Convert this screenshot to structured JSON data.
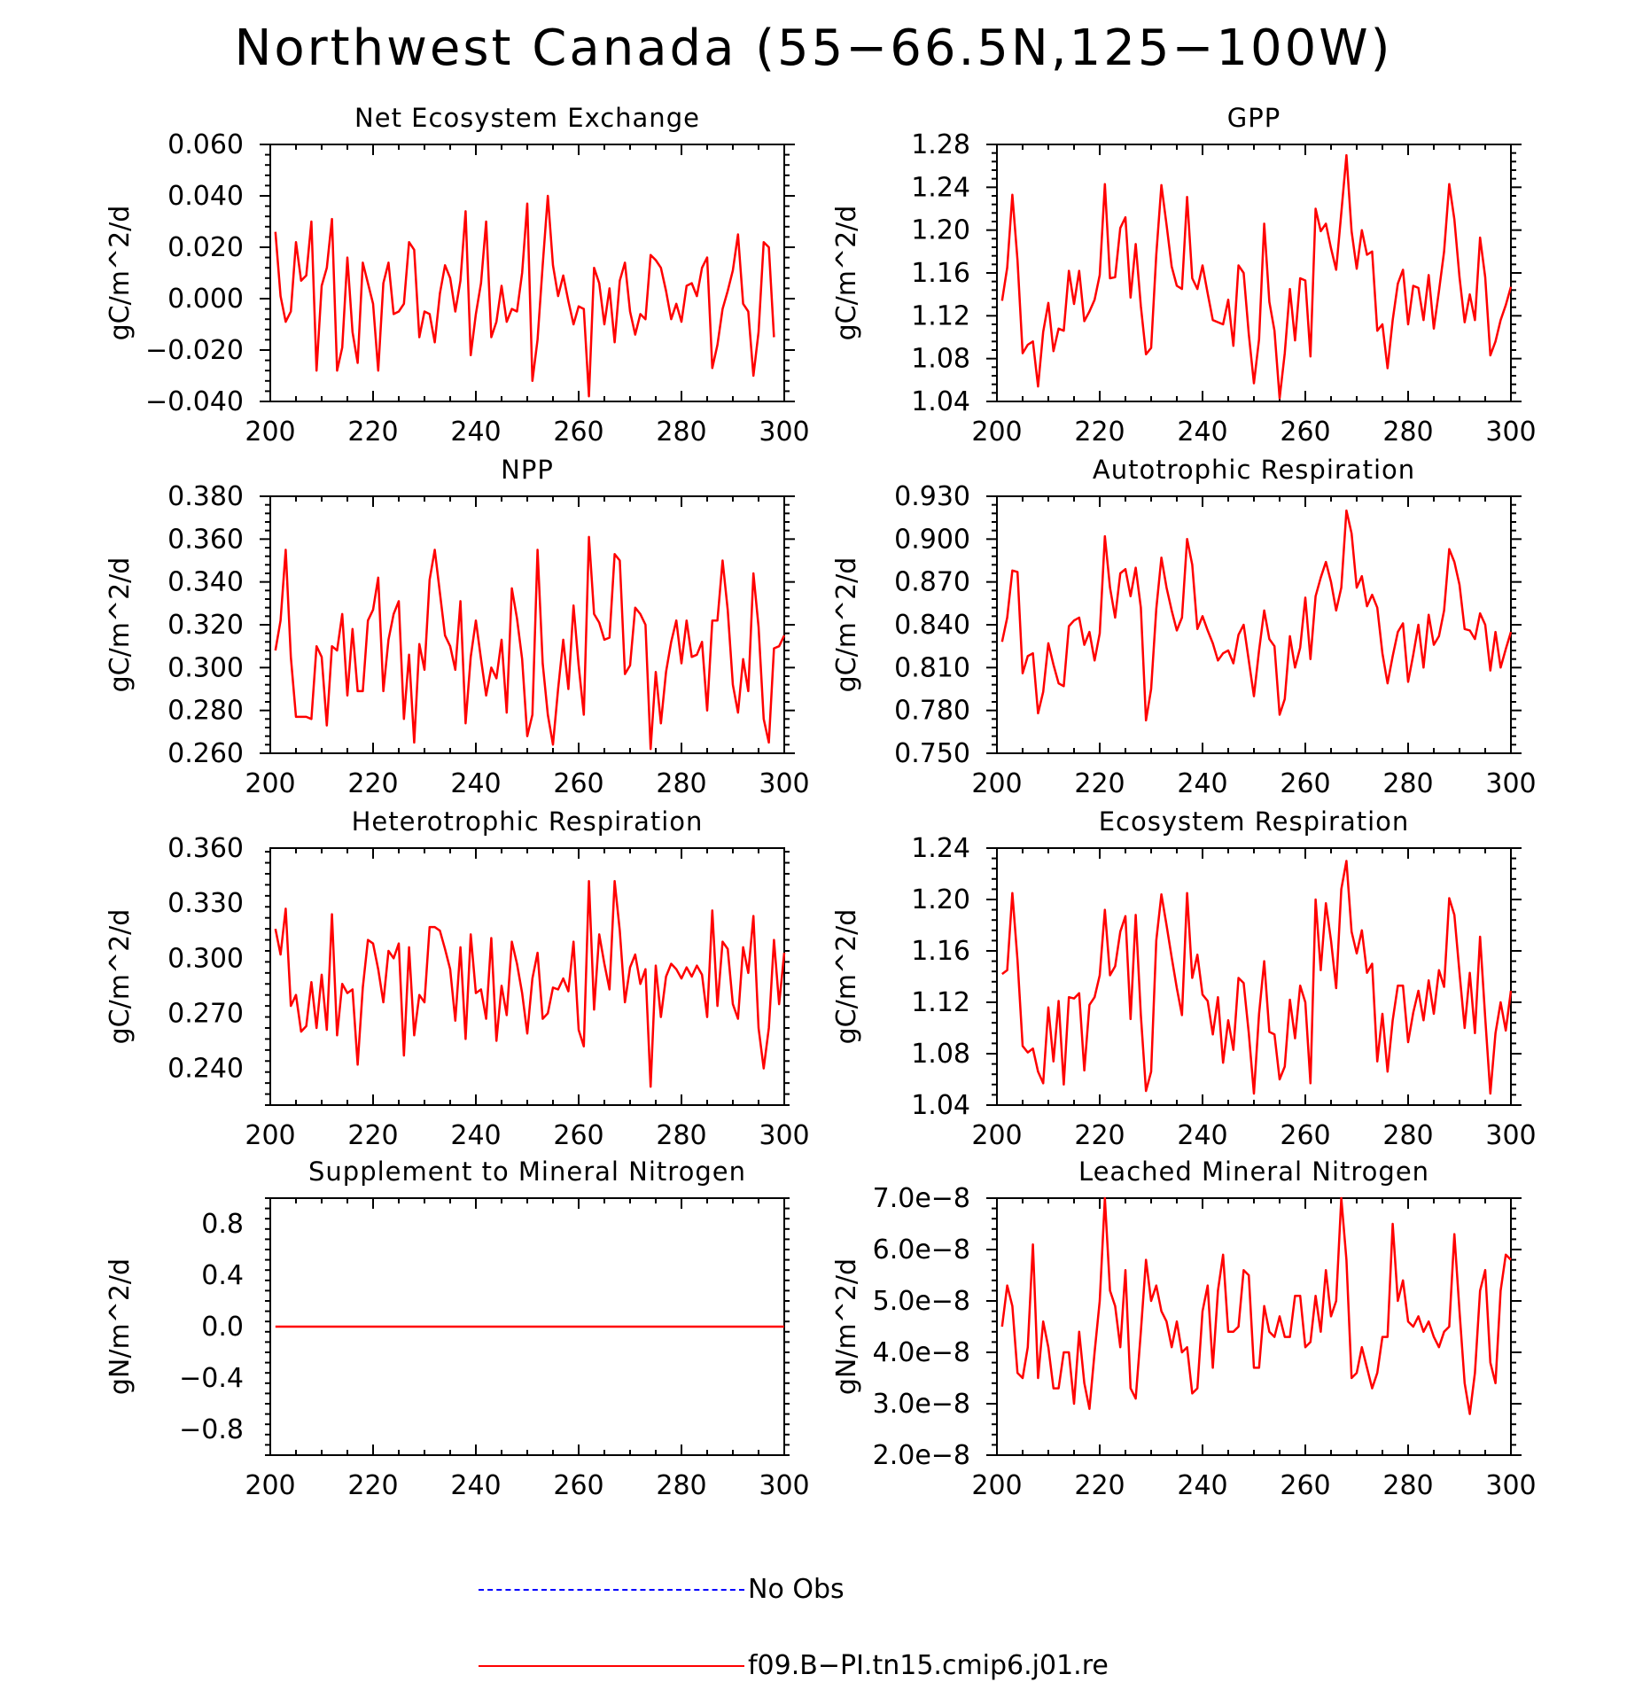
{
  "title": "Northwest Canada (55−66.5N,125−100W)",
  "colors": {
    "model": "#ff0000",
    "obs": "#0000ff",
    "axis": "#000000"
  },
  "legend": {
    "obs_label": "No Obs",
    "model_label": "f09.B−PI.tn15.cmip6.j01.re"
  },
  "chart_data": [
    {
      "type": "line",
      "title": "Net Ecosystem Exchange",
      "ylabel": "gC/m^2/d",
      "xlim": [
        200,
        300
      ],
      "ylim": [
        -0.04,
        0.06
      ],
      "xticks": [
        "200",
        "220",
        "240",
        "260",
        "280",
        "300"
      ],
      "yticks": [
        "−0.040",
        "−0.020",
        "0.000",
        "0.020",
        "0.040",
        "0.060"
      ],
      "series": [
        {
          "x_start": 201,
          "values": [
            0.026,
            0.001,
            -0.009,
            -0.005,
            0.022,
            0.007,
            0.009,
            0.03,
            -0.028,
            0.005,
            0.012,
            0.031,
            -0.028,
            -0.019,
            0.016,
            -0.013,
            -0.025,
            0.014,
            0.006,
            -0.002,
            -0.028,
            0.006,
            0.014,
            -0.006,
            -0.005,
            -0.002,
            0.022,
            0.019,
            -0.015,
            -0.005,
            -0.006,
            -0.017,
            0.002,
            0.013,
            0.008,
            -0.005,
            0.007,
            0.034,
            -0.022,
            -0.006,
            0.006,
            0.03,
            -0.015,
            -0.009,
            0.005,
            -0.009,
            -0.004,
            -0.005,
            0.01,
            0.037,
            -0.032,
            -0.016,
            0.013,
            0.04,
            0.013,
            0.001,
            0.009,
            -0.001,
            -0.01,
            -0.003,
            -0.004,
            -0.038,
            0.012,
            0.006,
            -0.01,
            0.004,
            -0.017,
            0.007,
            0.014,
            -0.005,
            -0.014,
            -0.006,
            -0.008,
            0.017,
            0.015,
            0.012,
            0.003,
            -0.008,
            -0.002,
            -0.009,
            0.005,
            0.006,
            0.001,
            0.012,
            0.016,
            -0.027,
            -0.018,
            -0.004,
            0.003,
            0.011,
            0.025,
            -0.002,
            -0.005,
            -0.03,
            -0.013,
            0.022,
            0.02,
            -0.015
          ]
        }
      ]
    },
    {
      "type": "line",
      "title": "GPP",
      "ylabel": "gC/m^2/d",
      "xlim": [
        200,
        300
      ],
      "ylim": [
        1.04,
        1.28
      ],
      "xticks": [
        "200",
        "220",
        "240",
        "260",
        "280",
        "300"
      ],
      "yticks": [
        "1.04",
        "1.08",
        "1.12",
        "1.16",
        "1.20",
        "1.24",
        "1.28"
      ],
      "series": [
        {
          "x_start": 201,
          "values": [
            1.134,
            1.165,
            1.233,
            1.172,
            1.085,
            1.093,
            1.096,
            1.054,
            1.105,
            1.132,
            1.087,
            1.108,
            1.106,
            1.162,
            1.131,
            1.162,
            1.115,
            1.124,
            1.135,
            1.158,
            1.243,
            1.155,
            1.156,
            1.202,
            1.212,
            1.137,
            1.187,
            1.129,
            1.084,
            1.09,
            1.177,
            1.242,
            1.205,
            1.166,
            1.148,
            1.145,
            1.231,
            1.155,
            1.145,
            1.167,
            1.141,
            1.116,
            1.114,
            1.112,
            1.135,
            1.092,
            1.167,
            1.16,
            1.103,
            1.057,
            1.098,
            1.206,
            1.133,
            1.106,
            1.043,
            1.085,
            1.145,
            1.097,
            1.155,
            1.153,
            1.082,
            1.22,
            1.199,
            1.206,
            1.183,
            1.163,
            1.216,
            1.27,
            1.199,
            1.164,
            1.2,
            1.177,
            1.18,
            1.106,
            1.112,
            1.071,
            1.116,
            1.15,
            1.163,
            1.112,
            1.148,
            1.146,
            1.116,
            1.158,
            1.108,
            1.143,
            1.18,
            1.243,
            1.21,
            1.156,
            1.114,
            1.14,
            1.116,
            1.193,
            1.156,
            1.083,
            1.096,
            1.116,
            1.13,
            1.147
          ]
        }
      ]
    },
    {
      "type": "line",
      "title": "NPP",
      "ylabel": "gC/m^2/d",
      "xlim": [
        200,
        300
      ],
      "ylim": [
        0.26,
        0.38
      ],
      "xticks": [
        "200",
        "220",
        "240",
        "260",
        "280",
        "300"
      ],
      "yticks": [
        "0.260",
        "0.280",
        "0.300",
        "0.320",
        "0.340",
        "0.360",
        "0.380"
      ],
      "series": [
        {
          "x_start": 201,
          "values": [
            0.308,
            0.322,
            0.355,
            0.305,
            0.277,
            0.277,
            0.277,
            0.276,
            0.31,
            0.305,
            0.273,
            0.31,
            0.308,
            0.325,
            0.287,
            0.318,
            0.289,
            0.289,
            0.322,
            0.327,
            0.342,
            0.289,
            0.313,
            0.325,
            0.331,
            0.276,
            0.306,
            0.265,
            0.311,
            0.299,
            0.341,
            0.355,
            0.335,
            0.315,
            0.31,
            0.299,
            0.331,
            0.274,
            0.305,
            0.322,
            0.304,
            0.287,
            0.3,
            0.295,
            0.313,
            0.279,
            0.337,
            0.323,
            0.304,
            0.268,
            0.278,
            0.355,
            0.302,
            0.278,
            0.264,
            0.29,
            0.313,
            0.29,
            0.329,
            0.301,
            0.278,
            0.361,
            0.325,
            0.321,
            0.313,
            0.314,
            0.353,
            0.35,
            0.297,
            0.301,
            0.328,
            0.325,
            0.32,
            0.262,
            0.298,
            0.274,
            0.298,
            0.312,
            0.322,
            0.302,
            0.322,
            0.305,
            0.306,
            0.312,
            0.28,
            0.322,
            0.322,
            0.35,
            0.327,
            0.292,
            0.279,
            0.304,
            0.289,
            0.344,
            0.319,
            0.276,
            0.265,
            0.309,
            0.31,
            0.315
          ]
        }
      ]
    },
    {
      "type": "line",
      "title": "Autotrophic Respiration",
      "ylabel": "gC/m^2/d",
      "xlim": [
        200,
        300
      ],
      "ylim": [
        0.75,
        0.93
      ],
      "xticks": [
        "200",
        "220",
        "240",
        "260",
        "280",
        "300"
      ],
      "yticks": [
        "0.750",
        "0.780",
        "0.810",
        "0.840",
        "0.870",
        "0.900",
        "0.930"
      ],
      "series": [
        {
          "x_start": 201,
          "values": [
            0.828,
            0.845,
            0.878,
            0.877,
            0.806,
            0.818,
            0.82,
            0.778,
            0.793,
            0.827,
            0.812,
            0.799,
            0.797,
            0.839,
            0.843,
            0.845,
            0.826,
            0.835,
            0.815,
            0.834,
            0.902,
            0.866,
            0.845,
            0.876,
            0.879,
            0.86,
            0.88,
            0.852,
            0.773,
            0.795,
            0.851,
            0.887,
            0.866,
            0.85,
            0.836,
            0.845,
            0.9,
            0.882,
            0.837,
            0.846,
            0.836,
            0.827,
            0.815,
            0.82,
            0.822,
            0.813,
            0.833,
            0.84,
            0.815,
            0.79,
            0.822,
            0.85,
            0.83,
            0.825,
            0.777,
            0.788,
            0.832,
            0.81,
            0.824,
            0.859,
            0.816,
            0.86,
            0.873,
            0.884,
            0.87,
            0.85,
            0.866,
            0.92,
            0.904,
            0.866,
            0.874,
            0.853,
            0.861,
            0.852,
            0.82,
            0.799,
            0.818,
            0.835,
            0.841,
            0.8,
            0.819,
            0.84,
            0.81,
            0.847,
            0.826,
            0.832,
            0.85,
            0.893,
            0.884,
            0.868,
            0.837,
            0.836,
            0.83,
            0.848,
            0.84,
            0.808,
            0.835,
            0.81,
            0.823,
            0.835
          ]
        }
      ]
    },
    {
      "type": "line",
      "title": "Heterotrophic Respiration",
      "ylabel": "gC/m^2/d",
      "xlim": [
        200,
        300
      ],
      "ylim": [
        0.22,
        0.36
      ],
      "xticks": [
        "200",
        "220",
        "240",
        "260",
        "280",
        "300"
      ],
      "yticks": [
        "0.240",
        "0.270",
        "0.300",
        "0.330",
        "0.360"
      ],
      "series": [
        {
          "x_start": 201,
          "values": [
            0.316,
            0.302,
            0.327,
            0.274,
            0.28,
            0.26,
            0.263,
            0.287,
            0.262,
            0.291,
            0.261,
            0.324,
            0.258,
            0.286,
            0.281,
            0.283,
            0.242,
            0.284,
            0.31,
            0.308,
            0.294,
            0.276,
            0.304,
            0.3,
            0.308,
            0.247,
            0.306,
            0.258,
            0.28,
            0.276,
            0.317,
            0.317,
            0.315,
            0.305,
            0.294,
            0.266,
            0.306,
            0.256,
            0.313,
            0.281,
            0.283,
            0.267,
            0.311,
            0.255,
            0.285,
            0.269,
            0.309,
            0.297,
            0.281,
            0.259,
            0.289,
            0.303,
            0.267,
            0.27,
            0.284,
            0.283,
            0.289,
            0.282,
            0.309,
            0.261,
            0.252,
            0.342,
            0.272,
            0.313,
            0.297,
            0.283,
            0.342,
            0.315,
            0.276,
            0.295,
            0.302,
            0.286,
            0.294,
            0.23,
            0.296,
            0.268,
            0.29,
            0.297,
            0.294,
            0.289,
            0.295,
            0.29,
            0.296,
            0.291,
            0.268,
            0.326,
            0.274,
            0.309,
            0.305,
            0.275,
            0.267,
            0.306,
            0.292,
            0.323,
            0.262,
            0.24,
            0.262,
            0.31,
            0.275,
            0.303
          ]
        }
      ]
    },
    {
      "type": "line",
      "title": "Ecosystem Respiration",
      "ylabel": "gC/m^2/d",
      "xlim": [
        200,
        300
      ],
      "ylim": [
        1.04,
        1.24
      ],
      "xticks": [
        "200",
        "220",
        "240",
        "260",
        "280",
        "300"
      ],
      "yticks": [
        "1.04",
        "1.08",
        "1.12",
        "1.16",
        "1.20",
        "1.24"
      ],
      "series": [
        {
          "x_start": 201,
          "values": [
            1.142,
            1.145,
            1.205,
            1.153,
            1.086,
            1.081,
            1.084,
            1.066,
            1.057,
            1.116,
            1.074,
            1.121,
            1.056,
            1.124,
            1.123,
            1.127,
            1.067,
            1.118,
            1.124,
            1.141,
            1.192,
            1.141,
            1.148,
            1.175,
            1.187,
            1.107,
            1.188,
            1.11,
            1.051,
            1.066,
            1.168,
            1.204,
            1.18,
            1.155,
            1.131,
            1.11,
            1.205,
            1.139,
            1.157,
            1.126,
            1.121,
            1.095,
            1.124,
            1.073,
            1.106,
            1.083,
            1.139,
            1.135,
            1.096,
            1.049,
            1.111,
            1.152,
            1.097,
            1.095,
            1.06,
            1.07,
            1.122,
            1.092,
            1.133,
            1.12,
            1.057,
            1.2,
            1.145,
            1.197,
            1.168,
            1.131,
            1.208,
            1.23,
            1.175,
            1.158,
            1.176,
            1.143,
            1.15,
            1.074,
            1.111,
            1.066,
            1.106,
            1.133,
            1.133,
            1.089,
            1.112,
            1.129,
            1.106,
            1.137,
            1.111,
            1.145,
            1.132,
            1.201,
            1.188,
            1.143,
            1.1,
            1.143,
            1.096,
            1.171,
            1.108,
            1.049,
            1.096,
            1.12,
            1.098,
            1.129
          ]
        }
      ]
    },
    {
      "type": "line",
      "title": "Supplement to Mineral Nitrogen",
      "ylabel": "gN/m^2/d",
      "xlim": [
        200,
        300
      ],
      "ylim": [
        -1.0,
        1.0
      ],
      "xticks": [
        "200",
        "220",
        "240",
        "260",
        "280",
        "300"
      ],
      "yticks": [
        "−0.8",
        "−0.4",
        "0.0",
        "0.4",
        "0.8"
      ],
      "series": [
        {
          "x_start": 201,
          "values": [
            0,
            0,
            0,
            0,
            0,
            0,
            0,
            0,
            0,
            0,
            0,
            0,
            0,
            0,
            0,
            0,
            0,
            0,
            0,
            0,
            0,
            0,
            0,
            0,
            0,
            0,
            0,
            0,
            0,
            0,
            0,
            0,
            0,
            0,
            0,
            0,
            0,
            0,
            0,
            0,
            0,
            0,
            0,
            0,
            0,
            0,
            0,
            0,
            0,
            0,
            0,
            0,
            0,
            0,
            0,
            0,
            0,
            0,
            0,
            0,
            0,
            0,
            0,
            0,
            0,
            0,
            0,
            0,
            0,
            0,
            0,
            0,
            0,
            0,
            0,
            0,
            0,
            0,
            0,
            0,
            0,
            0,
            0,
            0,
            0,
            0,
            0,
            0,
            0,
            0,
            0,
            0,
            0,
            0,
            0,
            0,
            0,
            0,
            0,
            0
          ]
        }
      ]
    },
    {
      "type": "line",
      "title": "Leached Mineral Nitrogen",
      "ylabel": "gN/m^2/d",
      "xlim": [
        200,
        300
      ],
      "ylim": [
        2e-08,
        7e-08
      ],
      "xticks": [
        "200",
        "220",
        "240",
        "260",
        "280",
        "300"
      ],
      "yticks": [
        "2.0e−8",
        "3.0e−8",
        "4.0e−8",
        "5.0e−8",
        "6.0e−8",
        "7.0e−8"
      ],
      "series": [
        {
          "x_start": 201,
          "values": [
            4.5e-08,
            5.3e-08,
            4.9e-08,
            3.6e-08,
            3.5e-08,
            4.1e-08,
            6.1e-08,
            3.5e-08,
            4.6e-08,
            4.1e-08,
            3.3e-08,
            3.3e-08,
            4e-08,
            4e-08,
            3e-08,
            4.4e-08,
            3.4e-08,
            2.9e-08,
            4e-08,
            5e-08,
            7e-08,
            5.2e-08,
            4.9e-08,
            4.1e-08,
            5.6e-08,
            3.3e-08,
            3.1e-08,
            4.4e-08,
            5.8e-08,
            5e-08,
            5.3e-08,
            4.8e-08,
            4.6e-08,
            4.1e-08,
            4.6e-08,
            4e-08,
            4.1e-08,
            3.2e-08,
            3.3e-08,
            4.8e-08,
            5.3e-08,
            3.7e-08,
            5.2e-08,
            5.9e-08,
            4.4e-08,
            4.4e-08,
            4.5e-08,
            5.6e-08,
            5.5e-08,
            3.7e-08,
            3.7e-08,
            4.9e-08,
            4.4e-08,
            4.3e-08,
            4.7e-08,
            4.3e-08,
            4.3e-08,
            5.1e-08,
            5.1e-08,
            4.1e-08,
            4.2e-08,
            5.1e-08,
            4.4e-08,
            5.6e-08,
            4.7e-08,
            5e-08,
            7e-08,
            5.8e-08,
            3.5e-08,
            3.6e-08,
            4.1e-08,
            3.7e-08,
            3.3e-08,
            3.6e-08,
            4.3e-08,
            4.3e-08,
            6.5e-08,
            5e-08,
            5.4e-08,
            4.6e-08,
            4.5e-08,
            4.7e-08,
            4.4e-08,
            4.6e-08,
            4.3e-08,
            4.1e-08,
            4.4e-08,
            4.5e-08,
            6.3e-08,
            4.8e-08,
            3.4e-08,
            2.8e-08,
            3.6e-08,
            5.2e-08,
            5.6e-08,
            3.8e-08,
            3.4e-08,
            5.2e-08,
            5.9e-08,
            5.8e-08
          ]
        }
      ]
    }
  ]
}
